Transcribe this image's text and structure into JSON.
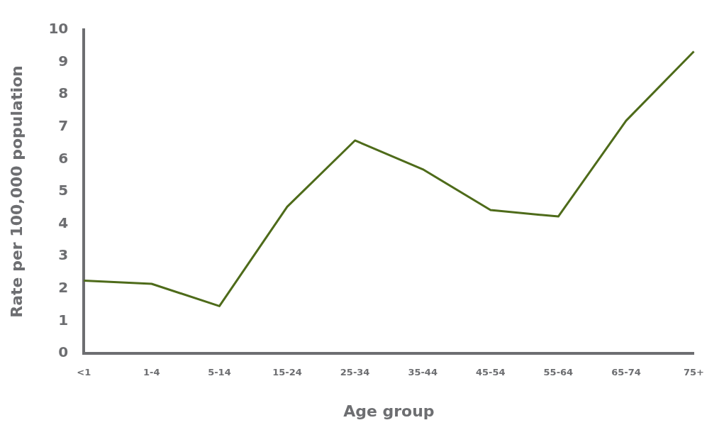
{
  "chart_data": {
    "type": "line",
    "xlabel": "Age group",
    "ylabel": "Rate per 100,000 population",
    "categories": [
      "<1",
      "1-4",
      "5-14",
      "15-24",
      "25-34",
      "35-44",
      "45-54",
      "55-64",
      "65-74",
      "75+"
    ],
    "series": [
      {
        "color": "#4e6b1a",
        "values": [
          2.25,
          2.15,
          1.46,
          4.53,
          6.58,
          5.69,
          4.43,
          4.23,
          7.19,
          9.33
        ]
      }
    ],
    "ylim": [
      0,
      10
    ],
    "yticks": [
      0,
      1,
      2,
      3,
      4,
      5,
      6,
      7,
      8,
      9,
      10
    ],
    "grid": false,
    "legend": false,
    "marker": "none",
    "line_style": "solid"
  }
}
